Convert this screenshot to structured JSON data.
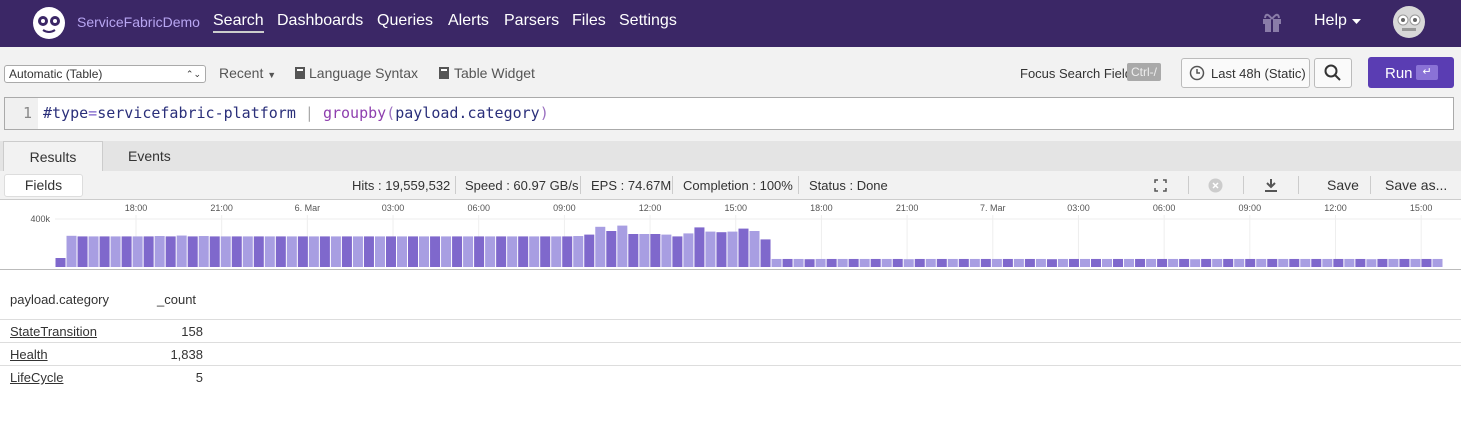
{
  "header": {
    "brand": "ServiceFabricDemo",
    "nav": [
      "Search",
      "Dashboards",
      "Queries",
      "Alerts",
      "Parsers",
      "Files",
      "Settings"
    ],
    "help": "Help"
  },
  "toolbar": {
    "mode": "Automatic (Table)",
    "recent": "Recent",
    "syntax": "Language Syntax",
    "widget": "Table Widget",
    "focus": "Focus Search Field",
    "shortcut": "Ctrl-/",
    "time": "Last 48h (Static)",
    "run": "Run"
  },
  "query": {
    "line": "1",
    "tokens": [
      "#type",
      "=",
      "servicefabric-platform",
      "|",
      "groupby",
      "(",
      "payload.category",
      ")"
    ]
  },
  "tabs": [
    "Results",
    "Events"
  ],
  "stats": {
    "fields": "Fields",
    "items": [
      "Hits : 19,559,532",
      "Speed : 60.97 GB/s",
      "EPS : 74.67M",
      "Completion : 100%",
      "Status : Done"
    ],
    "save": "Save",
    "save_as": "Save as..."
  },
  "chart_data": {
    "type": "bar",
    "colors": [
      "#7f68cc",
      "#a89ee2"
    ],
    "ylim": [
      0,
      500000
    ],
    "yticks": [
      {
        "value": 400000,
        "label": "400k"
      }
    ],
    "xlim": [
      0,
      48.6
    ],
    "xticks": [
      {
        "value": 2.836,
        "label": "18:00"
      },
      {
        "value": 5.836,
        "label": "21:00"
      },
      {
        "value": 8.836,
        "label": "6. Mar"
      },
      {
        "value": 11.836,
        "label": "03:00"
      },
      {
        "value": 14.836,
        "label": "06:00"
      },
      {
        "value": 17.836,
        "label": "09:00"
      },
      {
        "value": 20.836,
        "label": "12:00"
      },
      {
        "value": 23.836,
        "label": "15:00"
      },
      {
        "value": 26.836,
        "label": "18:00"
      },
      {
        "value": 29.836,
        "label": "21:00"
      },
      {
        "value": 32.836,
        "label": "7. Mar"
      },
      {
        "value": 35.836,
        "label": "03:00"
      },
      {
        "value": 38.836,
        "label": "06:00"
      },
      {
        "value": 41.836,
        "label": "09:00"
      },
      {
        "value": 44.836,
        "label": "12:00"
      },
      {
        "value": 47.836,
        "label": "15:00"
      }
    ],
    "grid": true,
    "values": [
      75000,
      260000,
      255000,
      255000,
      255000,
      255000,
      255000,
      255000,
      255000,
      258000,
      255000,
      262000,
      255000,
      258000,
      255000,
      255000,
      255000,
      255000,
      255000,
      255000,
      255000,
      255000,
      255000,
      255000,
      255000,
      255000,
      255000,
      255000,
      255000,
      255000,
      255000,
      255000,
      255000,
      255000,
      255000,
      255000,
      255000,
      255000,
      255000,
      255000,
      255000,
      255000,
      255000,
      255000,
      255000,
      255000,
      255000,
      258000,
      270000,
      335000,
      300000,
      345000,
      275000,
      275000,
      275000,
      270000,
      255000,
      280000,
      330000,
      295000,
      290000,
      295000,
      320000,
      300000,
      230000,
      67000,
      67000,
      67000,
      65000,
      67000,
      67000,
      67000,
      67000,
      67000,
      67000,
      67000,
      67000,
      65000,
      67000,
      67000,
      67000,
      67000,
      67000,
      67000,
      67000,
      67000,
      67000,
      67000,
      67000,
      67000,
      65000,
      67000,
      67000,
      67000,
      67000,
      67000,
      67000,
      67000,
      67000,
      67000,
      67000,
      67000,
      67000,
      65000,
      67000,
      67000,
      67000,
      67000,
      67000,
      67000,
      67000,
      67000,
      67000,
      67000,
      67000,
      67000,
      67000,
      67000,
      67000,
      65000,
      67000,
      67000,
      67000,
      67000,
      67000,
      67000
    ]
  },
  "table": {
    "columns": [
      "payload.category",
      "_count"
    ],
    "rows": [
      [
        "StateTransition",
        "158"
      ],
      [
        "Health",
        "1,838"
      ],
      [
        "LifeCycle",
        "5"
      ]
    ]
  }
}
